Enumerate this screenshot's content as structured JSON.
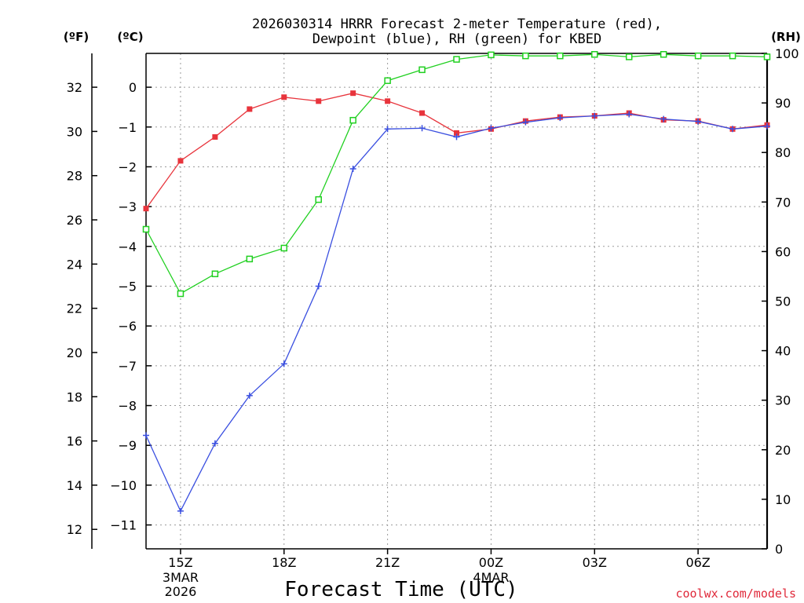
{
  "chart_data": {
    "type": "line",
    "title_line1": "2026030314 HRRR Forecast 2-meter Temperature (red),",
    "title_line2": "Dewpoint (blue), RH (green) for KBED",
    "unit_f": "(ºF)",
    "unit_c": "(ºC)",
    "unit_rh": "(RH)",
    "xlabel": "Forecast Time (UTC)",
    "credit": "coolwx.com/models",
    "x_hours": [
      0,
      1,
      2,
      3,
      4,
      5,
      6,
      7,
      8,
      9,
      10,
      11,
      12,
      13,
      14,
      15,
      16,
      17,
      18
    ],
    "x_ticks": [
      {
        "hour": 1,
        "label": "15Z",
        "sub1": "3MAR",
        "sub2": "2026"
      },
      {
        "hour": 4,
        "label": "18Z",
        "sub1": "",
        "sub2": ""
      },
      {
        "hour": 7,
        "label": "21Z",
        "sub1": "",
        "sub2": ""
      },
      {
        "hour": 10,
        "label": "00Z",
        "sub1": "4MAR",
        "sub2": ""
      },
      {
        "hour": 13,
        "label": "03Z",
        "sub1": "",
        "sub2": ""
      },
      {
        "hour": 16,
        "label": "06Z",
        "sub1": "",
        "sub2": ""
      }
    ],
    "ylim_c": [
      -11.6,
      0.85
    ],
    "ylim_rh": [
      0,
      100
    ],
    "c_ticks": [
      "0",
      "−1",
      "−2",
      "−3",
      "−4",
      "−5",
      "−6",
      "−7",
      "−8",
      "−9",
      "−10",
      "−11"
    ],
    "c_tick_values": [
      0,
      -1,
      -2,
      -3,
      -4,
      -5,
      -6,
      -7,
      -8,
      -9,
      -10,
      -11
    ],
    "f_ticks": [
      "32",
      "30",
      "28",
      "26",
      "24",
      "22",
      "20",
      "18",
      "16",
      "14",
      "12"
    ],
    "f_tick_values": [
      32,
      30,
      28,
      26,
      24,
      22,
      20,
      18,
      16,
      14,
      12
    ],
    "rh_ticks": [
      "100",
      "90",
      "80",
      "70",
      "60",
      "50",
      "40",
      "30",
      "20",
      "10",
      "0"
    ],
    "rh_tick_values": [
      100,
      90,
      80,
      70,
      60,
      50,
      40,
      30,
      20,
      10,
      0
    ],
    "series": [
      {
        "name": "Temperature",
        "color": "#e8343c",
        "marker": "filled-square",
        "values": [
          -3.05,
          -1.85,
          -1.25,
          -0.55,
          -0.25,
          -0.35,
          -0.15,
          -0.35,
          -0.65,
          -1.15,
          -1.05,
          -0.85,
          -0.75,
          -0.72,
          -0.65,
          -0.82,
          -0.85,
          -1.05,
          -0.95
        ]
      },
      {
        "name": "Dewpoint",
        "color": "#3a4fe0",
        "marker": "plus",
        "values": [
          -8.75,
          -10.65,
          -8.95,
          -7.75,
          -6.95,
          -5.0,
          -2.05,
          -1.05,
          -1.03,
          -1.25,
          -1.03,
          -0.88,
          -0.77,
          -0.72,
          -0.68,
          -0.8,
          -0.86,
          -1.05,
          -0.98
        ]
      },
      {
        "name": "RH",
        "color": "#20d020",
        "marker": "open-square",
        "values": [
          64.5,
          51.5,
          55.5,
          58.5,
          60.7,
          70.5,
          86.5,
          94.5,
          96.7,
          98.8,
          99.7,
          99.5,
          99.5,
          99.8,
          99.3,
          99.8,
          99.5,
          99.5,
          99.3
        ]
      }
    ]
  }
}
